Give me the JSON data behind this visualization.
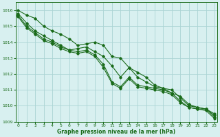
{
  "xlabel": "Graphe pression niveau de la mer (hPa)",
  "x_values": [
    0,
    1,
    2,
    3,
    4,
    5,
    6,
    7,
    8,
    9,
    10,
    11,
    12,
    13,
    14,
    15,
    16,
    17,
    18,
    19,
    20,
    21,
    22,
    23
  ],
  "line1": [
    1016.0,
    1015.7,
    1015.5,
    1015.0,
    1014.7,
    1014.5,
    1014.2,
    1013.8,
    1013.9,
    1014.0,
    1013.8,
    1013.1,
    1013.0,
    1012.4,
    1011.8,
    1011.5,
    1011.2,
    1011.1,
    1010.8,
    1010.6,
    1010.1,
    1009.9,
    1009.8,
    1009.4
  ],
  "line2": [
    1015.8,
    1015.2,
    1014.7,
    1014.4,
    1014.1,
    1013.8,
    1013.5,
    1013.6,
    1013.7,
    1013.4,
    1013.1,
    1012.5,
    1011.8,
    1012.4,
    1012.1,
    1011.8,
    1011.3,
    1011.1,
    1011.0,
    1010.5,
    1010.0,
    1009.9,
    1009.8,
    1009.5
  ],
  "line3": [
    1015.7,
    1015.0,
    1014.6,
    1014.2,
    1014.0,
    1013.7,
    1013.5,
    1013.4,
    1013.5,
    1013.2,
    1012.6,
    1011.5,
    1011.2,
    1011.8,
    1011.3,
    1011.2,
    1011.1,
    1011.0,
    1010.8,
    1010.3,
    1009.9,
    1009.8,
    1009.8,
    1009.3
  ],
  "line4": [
    1015.6,
    1014.9,
    1014.5,
    1014.1,
    1013.9,
    1013.6,
    1013.4,
    1013.3,
    1013.4,
    1013.1,
    1012.4,
    1011.4,
    1011.1,
    1011.7,
    1011.2,
    1011.1,
    1011.0,
    1010.9,
    1010.7,
    1010.2,
    1009.9,
    1009.8,
    1009.7,
    1009.2
  ],
  "bg_color": "#d8f0f0",
  "grid_color": "#aad4d4",
  "line_color": "#1a6b1a",
  "marker_color": "#1a6b1a",
  "text_color": "#1a6b1a",
  "ylim": [
    1009.0,
    1016.5
  ],
  "yticks": [
    1009,
    1010,
    1011,
    1012,
    1013,
    1014,
    1015,
    1016
  ],
  "xticks": [
    0,
    1,
    2,
    3,
    4,
    5,
    6,
    7,
    8,
    9,
    10,
    11,
    12,
    13,
    14,
    15,
    16,
    17,
    18,
    19,
    20,
    21,
    22,
    23
  ]
}
